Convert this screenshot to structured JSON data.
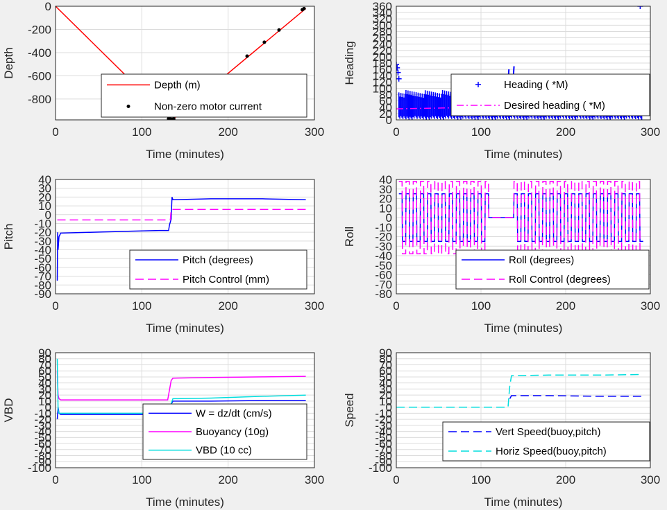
{
  "chart_data": [
    {
      "id": "depth",
      "type": "line",
      "xlabel": "Time (minutes)",
      "ylabel": "Depth",
      "xlim": [
        0,
        300
      ],
      "ylim": [
        -980,
        0
      ],
      "xticks": [
        0,
        100,
        200,
        300
      ],
      "yticks": [
        0,
        -200,
        -400,
        -600,
        -800
      ],
      "grid": true,
      "legend_position": "lower-center",
      "series": [
        {
          "name": "Depth (m)",
          "style": "line",
          "color": "#ff0000",
          "x": [
            0,
            133,
            136,
            290
          ],
          "y": [
            0,
            -975,
            -975,
            -20
          ]
        },
        {
          "name": "Non-zero motor current",
          "style": "dot",
          "color": "#000000",
          "x": [
            131,
            133,
            135,
            137,
            222,
            242,
            259,
            286,
            288
          ],
          "y": [
            -970,
            -973,
            -975,
            -972,
            -430,
            -310,
            -205,
            -30,
            -20
          ]
        }
      ]
    },
    {
      "id": "heading",
      "type": "scatter",
      "xlabel": "Time (minutes)",
      "ylabel": "Heading",
      "xlim": [
        0,
        300
      ],
      "ylim": [
        0,
        360
      ],
      "xticks": [
        0,
        100,
        200,
        300
      ],
      "yticks": [
        0,
        20,
        40,
        60,
        80,
        100,
        120,
        140,
        160,
        180,
        200,
        220,
        240,
        260,
        280,
        300,
        320,
        340,
        360
      ],
      "grid": true,
      "legend_position": "right",
      "series": [
        {
          "name": "Heading (   *M)",
          "style": "plus",
          "color": "#0000ff",
          "x": [
            0,
            1,
            2,
            3,
            288
          ],
          "y": [
            175,
            165,
            150,
            130,
            360
          ],
          "band": {
            "x0": 3,
            "x1": 290,
            "ymin": 0,
            "ymax": 95,
            "spikes": [
              [
                85,
                115
              ],
              [
                92,
                125
              ],
              [
                118,
                115
              ],
              [
                130,
                160
              ],
              [
                136,
                170
              ],
              [
                145,
                110
              ],
              [
                158,
                130
              ],
              [
                172,
                120
              ],
              [
                210,
                130
              ],
              [
                255,
                110
              ],
              [
                270,
                120
              ]
            ]
          }
        },
        {
          "name": "Desired heading (   *M)",
          "style": "dashdot",
          "color": "#ff00ff",
          "x": [
            0,
            60,
            100,
            140,
            180,
            220,
            260,
            290
          ],
          "y": [
            35,
            38,
            38,
            38,
            40,
            40,
            38,
            38
          ]
        }
      ]
    },
    {
      "id": "pitch",
      "type": "line",
      "xlabel": "Time (minutes)",
      "ylabel": "Pitch",
      "xlim": [
        0,
        300
      ],
      "ylim": [
        -90,
        40
      ],
      "xticks": [
        0,
        100,
        200,
        300
      ],
      "yticks": [
        40,
        30,
        20,
        10,
        0,
        -10,
        -20,
        -30,
        -40,
        -50,
        -60,
        -70,
        -80,
        -90
      ],
      "grid": true,
      "legend_position": "lower-right",
      "series": [
        {
          "name": "Pitch (degrees)",
          "style": "line",
          "color": "#0000ff",
          "x": [
            2,
            2.5,
            3,
            4,
            6,
            40,
            80,
            120,
            131,
            132,
            134,
            135,
            136,
            180,
            240,
            290
          ],
          "y": [
            -75,
            -20,
            -40,
            -25,
            -21,
            -20,
            -19,
            -18,
            -18,
            -12,
            -5,
            20,
            17,
            18,
            18,
            17
          ]
        },
        {
          "name": "Pitch Control (mm)",
          "style": "dash",
          "color": "#ff00ff",
          "x": [
            2,
            10,
            60,
            133,
            134,
            200,
            290
          ],
          "y": [
            -6,
            -6,
            -6,
            -6,
            6,
            6,
            6
          ]
        }
      ]
    },
    {
      "id": "roll",
      "type": "line",
      "xlabel": "Time (minutes)",
      "ylabel": "Roll",
      "xlim": [
        0,
        300
      ],
      "ylim": [
        -80,
        40
      ],
      "xticks": [
        0,
        100,
        200,
        300
      ],
      "yticks": [
        40,
        30,
        20,
        10,
        0,
        -10,
        -20,
        -30,
        -40,
        -50,
        -60,
        -70,
        -80
      ],
      "grid": true,
      "legend_position": "lower-right",
      "series": [
        {
          "name": "Roll (degrees)",
          "style": "line",
          "color": "#0000ff",
          "square_wave": {
            "x0": 3,
            "x1": 290,
            "period": 8.5,
            "hi": 25,
            "lo": -25,
            "quiet": [
              [
                108,
                135
              ]
            ],
            "quiet_level": 0
          }
        },
        {
          "name": "Roll Control (degrees)",
          "style": "dash",
          "color": "#ff00ff",
          "square_wave": {
            "x0": 3,
            "x1": 290,
            "period": 8.5,
            "hi": 38,
            "lo": -38,
            "quiet": [
              [
                108,
                135
              ]
            ],
            "quiet_level": 0
          }
        }
      ]
    },
    {
      "id": "vbd",
      "type": "line",
      "xlabel": "Time (minutes)",
      "ylabel": "VBD",
      "xlim": [
        0,
        300
      ],
      "ylim": [
        -100,
        90
      ],
      "xticks": [
        0,
        100,
        200,
        300
      ],
      "yticks": [
        90,
        80,
        70,
        60,
        50,
        40,
        30,
        20,
        10,
        0,
        -10,
        -20,
        -30,
        -40,
        -50,
        -60,
        -70,
        -80,
        -90,
        -100
      ],
      "grid": true,
      "legend_position": "lower-right",
      "series": [
        {
          "name": "W = dz/dt (cm/s)",
          "style": "line",
          "color": "#0000ff",
          "x": [
            2,
            3,
            4,
            6,
            60,
            120,
            133,
            134,
            136,
            180,
            240,
            290
          ],
          "y": [
            -20,
            0,
            -10,
            -12,
            -12,
            -12,
            -12,
            5,
            10,
            10,
            11,
            11
          ]
        },
        {
          "name": "Buoyancy (10g)",
          "style": "line",
          "color": "#ff00ff",
          "x": [
            2,
            3,
            4,
            6,
            60,
            120,
            130,
            134,
            136,
            180,
            240,
            290
          ],
          "y": [
            60,
            20,
            14,
            12,
            12,
            12,
            12,
            44,
            48,
            49,
            50,
            51
          ]
        },
        {
          "name": "VBD (10 cc)",
          "style": "line",
          "color": "#00dddd",
          "x": [
            2,
            3,
            4,
            6,
            60,
            120,
            133,
            134,
            136,
            180,
            240,
            290
          ],
          "y": [
            80,
            -5,
            -10,
            -10,
            -10,
            -10,
            -10,
            6,
            14,
            15,
            18,
            20
          ]
        }
      ]
    },
    {
      "id": "speed",
      "type": "line",
      "xlabel": "Time (minutes)",
      "ylabel": "Speed",
      "xlim": [
        0,
        300
      ],
      "ylim": [
        -100,
        90
      ],
      "xticks": [
        0,
        100,
        200,
        300
      ],
      "yticks": [
        90,
        80,
        70,
        60,
        50,
        40,
        30,
        20,
        10,
        0,
        -10,
        -20,
        -30,
        -40,
        -50,
        -60,
        -70,
        -80,
        -90,
        -100
      ],
      "grid": true,
      "legend_position": "lower-right",
      "series": [
        {
          "name": "Vert Speed(buoy,pitch)",
          "style": "dash",
          "color": "#0000ff",
          "x": [
            134,
            136,
            180,
            240,
            290
          ],
          "y": [
            14,
            19,
            19,
            18,
            18
          ]
        },
        {
          "name": "Horiz Speed(buoy,pitch)",
          "style": "dash",
          "color": "#00dddd",
          "x": [
            0,
            100,
            132,
            133,
            134,
            136,
            180,
            240,
            290
          ],
          "y": [
            0,
            0,
            0,
            20,
            35,
            52,
            53,
            53,
            54
          ]
        }
      ]
    }
  ]
}
